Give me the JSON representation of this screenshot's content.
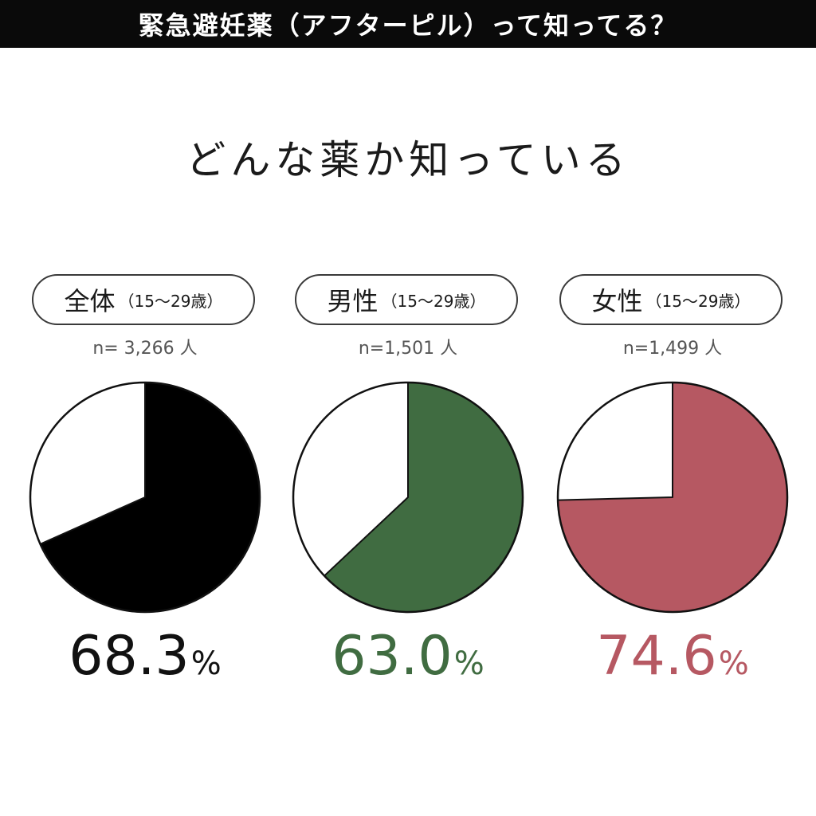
{
  "header": {
    "title": "緊急避妊薬（アフターピル）って知ってる？",
    "subtitle": "どんな薬か知っている"
  },
  "theme": {
    "banner_bg": "#0a0a0a",
    "remainder_fill": "#ffffff",
    "outline": "#111111"
  },
  "chart_data": [
    {
      "type": "pie",
      "group": "全体",
      "age_range": "（15〜29歳）",
      "sample": "n= 3,266 人",
      "value": 68.3,
      "value_label": "68.3",
      "unit": "%",
      "color": "#000000",
      "text_color": "#111111"
    },
    {
      "type": "pie",
      "group": "男性",
      "age_range": "（15〜29歳）",
      "sample": "n=1,501 人",
      "value": 63.0,
      "value_label": "63.0",
      "unit": "%",
      "color": "#406c41",
      "text_color": "#406c41"
    },
    {
      "type": "pie",
      "group": "女性",
      "age_range": "（15〜29歳）",
      "sample": "n=1,499 人",
      "value": 74.6,
      "value_label": "74.6",
      "unit": "%",
      "color": "#b65862",
      "text_color": "#b65862"
    }
  ]
}
